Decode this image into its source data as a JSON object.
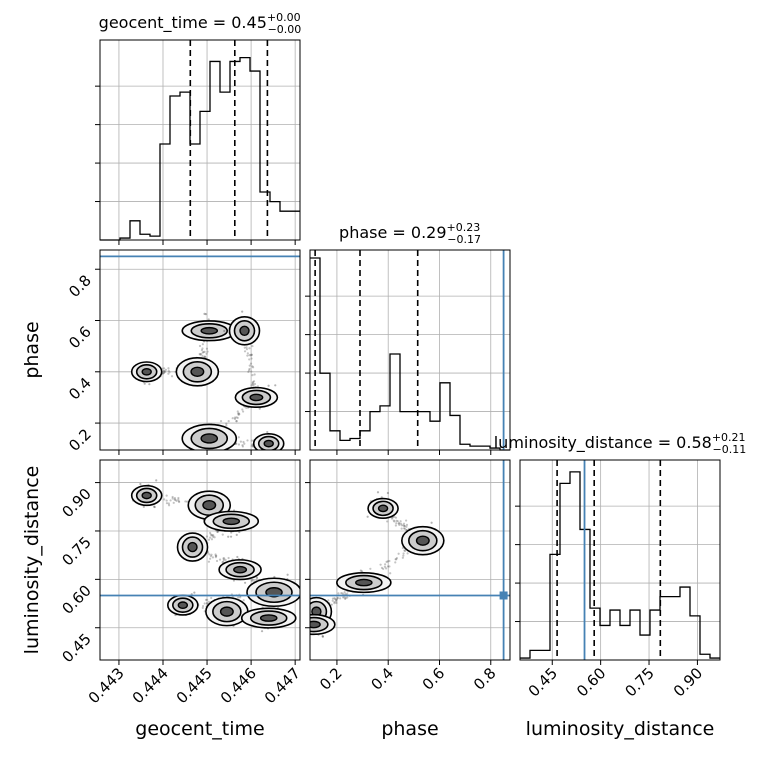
{
  "chart_data": {
    "type": "corner",
    "parameters": [
      "geocent_time",
      "phase",
      "luminosity_distance"
    ],
    "titles": [
      {
        "param": "geocent_time",
        "prefix": "geocent_time = ",
        "median": "0.45",
        "plus": "+0.00",
        "minus": "−0.00"
      },
      {
        "param": "phase",
        "prefix": "phase = ",
        "median": "0.29",
        "plus": "+0.23",
        "minus": "−0.17"
      },
      {
        "param": "luminosity_distance",
        "prefix": "luminosity_distance = ",
        "median": "0.58",
        "plus": "+0.21",
        "minus": "−0.11"
      }
    ],
    "ranges": {
      "geocent_time": [
        0.44257,
        0.44711
      ],
      "phase": [
        0.095,
        0.875
      ],
      "luminosity_distance": [
        0.35,
        0.97
      ]
    },
    "ticks": {
      "geocent_time": [
        "0.443",
        "0.444",
        "0.445",
        "0.446",
        "0.447"
      ],
      "phase": [
        "0.2",
        "0.4",
        "0.6",
        "0.8"
      ],
      "luminosity_distance": [
        "0.45",
        "0.60",
        "0.75",
        "0.90"
      ]
    },
    "truths": {
      "phase": 0.85,
      "luminosity_distance": 0.55
    },
    "quantiles": {
      "geocent_time": [
        0.44462,
        0.44563,
        0.44637
      ],
      "phase": [
        0.115,
        0.29,
        0.515
      ],
      "luminosity_distance": [
        0.465,
        0.58,
        0.785
      ]
    },
    "histograms": {
      "geocent_time": {
        "edges_start": 0.44257,
        "bin_width": 0.000227,
        "counts": [
          0,
          0,
          0.01,
          0.1,
          0.03,
          0.02,
          0.5,
          0.75,
          0.77,
          0.5,
          0.67,
          0.93,
          0.77,
          0.93,
          0.95,
          0.88,
          0.25,
          0.2,
          0.15,
          0.15
        ]
      },
      "phase": {
        "edges_start": 0.095,
        "bin_width": 0.039,
        "counts": [
          1.0,
          0.4,
          0.1,
          0.05,
          0.06,
          0.1,
          0.2,
          0.23,
          0.5,
          0.2,
          0.2,
          0.2,
          0.15,
          0.35,
          0.18,
          0.03,
          0.02,
          0.02,
          0.01,
          0.0
        ]
      },
      "luminosity_distance": {
        "edges_start": 0.35,
        "bin_width": 0.031,
        "counts": [
          0.01,
          0.05,
          0.05,
          0.55,
          0.92,
          0.98,
          0.68,
          0.27,
          0.18,
          0.26,
          0.18,
          0.26,
          0.13,
          0.26,
          0.33,
          0.33,
          0.38,
          0.23,
          0.03,
          0.01
        ]
      }
    },
    "contour_centers": {
      "phase_vs_geocent_time": [
        [
          0.44363,
          0.4
        ],
        [
          0.44478,
          0.4
        ],
        [
          0.44505,
          0.56
        ],
        [
          0.44585,
          0.56
        ],
        [
          0.44612,
          0.3
        ],
        [
          0.44505,
          0.14
        ],
        [
          0.4464,
          0.12
        ]
      ],
      "luminosity_distance_vs_geocent_time": [
        [
          0.44363,
          0.86
        ],
        [
          0.44505,
          0.83
        ],
        [
          0.44555,
          0.78
        ],
        [
          0.44467,
          0.7
        ],
        [
          0.44575,
          0.63
        ],
        [
          0.44652,
          0.56
        ],
        [
          0.44445,
          0.52
        ],
        [
          0.44545,
          0.5
        ],
        [
          0.4464,
          0.48
        ]
      ],
      "luminosity_distance_vs_phase": [
        [
          0.38,
          0.82
        ],
        [
          0.535,
          0.72
        ],
        [
          0.305,
          0.59
        ],
        [
          0.12,
          0.5
        ],
        [
          0.11,
          0.46
        ]
      ]
    }
  }
}
